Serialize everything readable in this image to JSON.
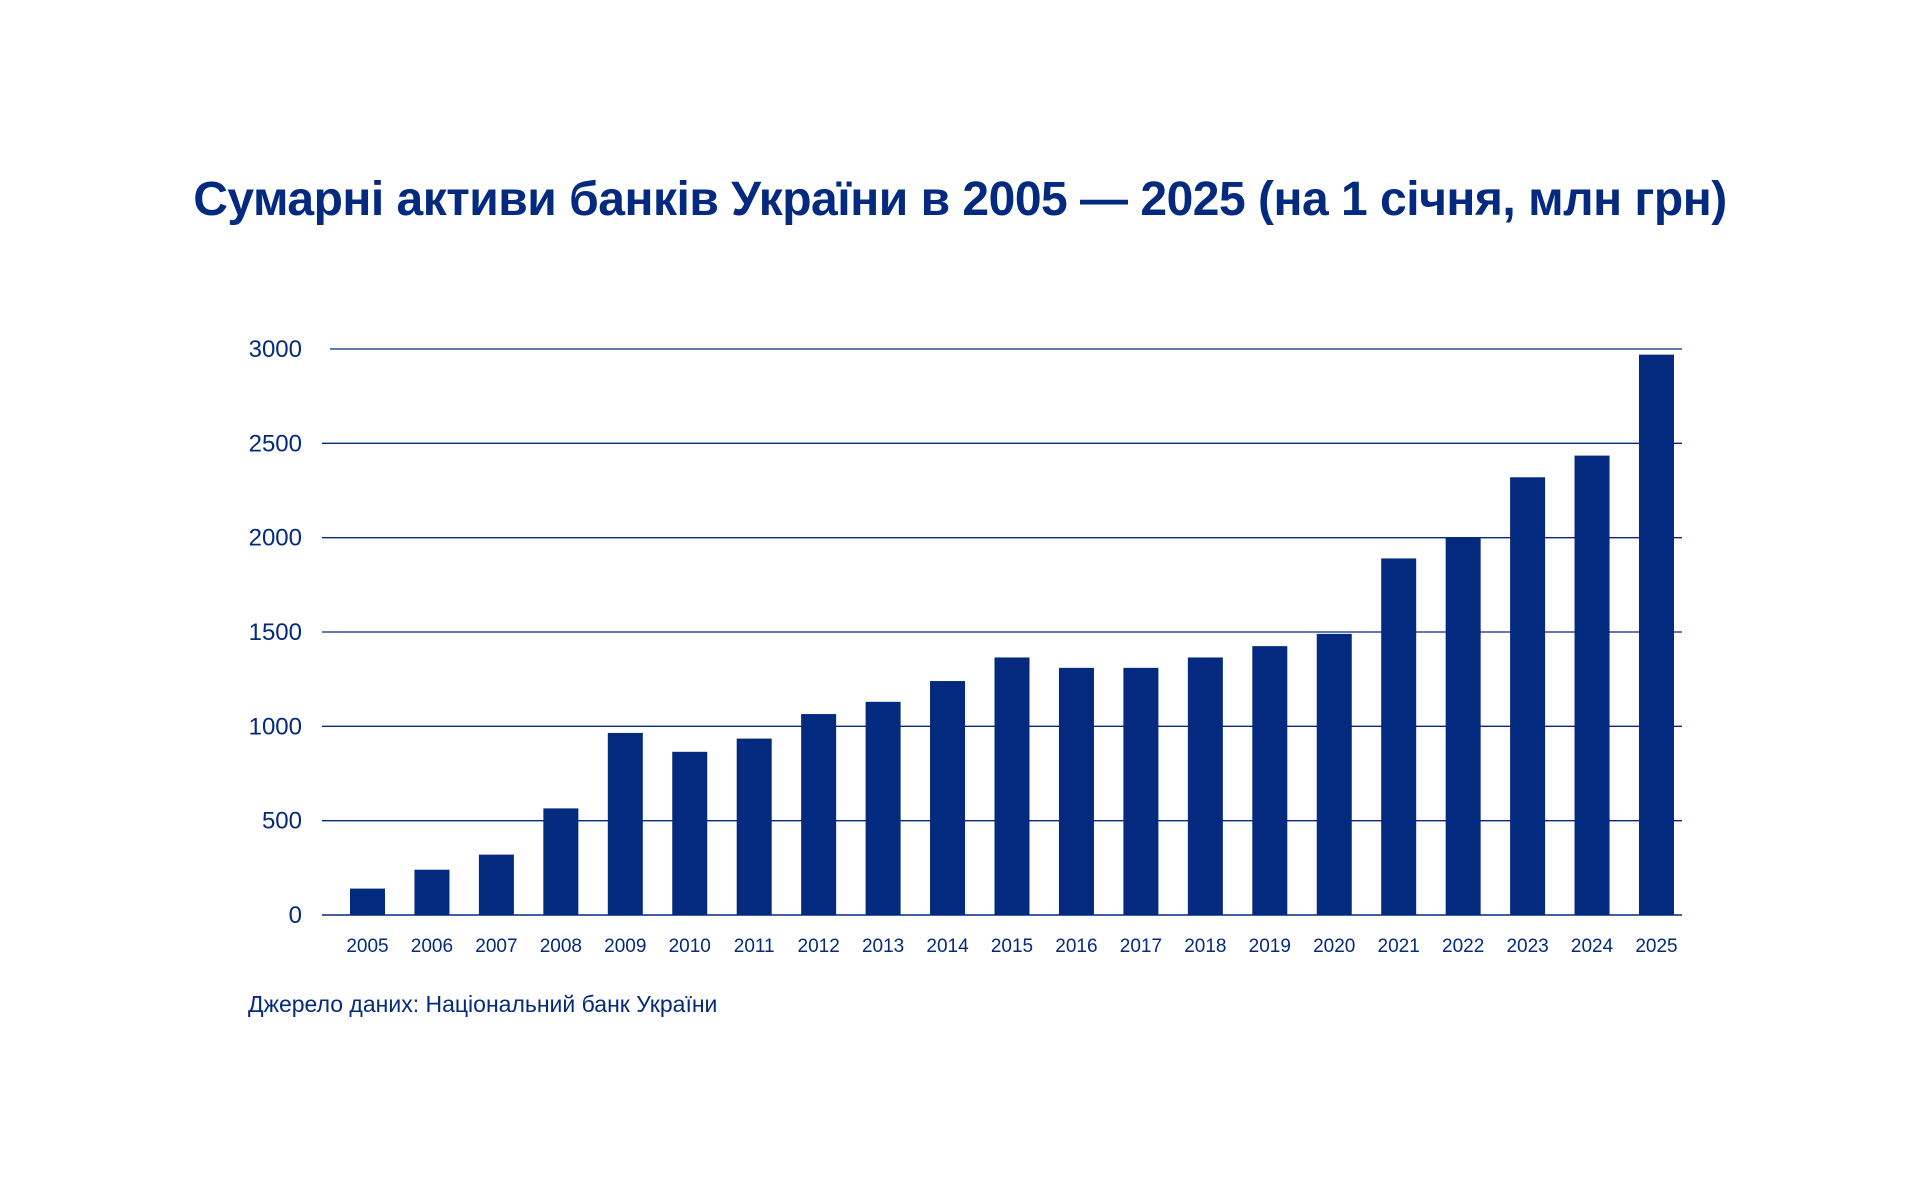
{
  "chart_data": {
    "type": "bar",
    "title": "Сумарні активи банків України в 2005 — 2025 (на 1 січня, млн грн)",
    "source": "Джерело даних: Національний банк України",
    "xlabel": "",
    "ylabel": "",
    "categories": [
      "2005",
      "2006",
      "2007",
      "2008",
      "2009",
      "2010",
      "2011",
      "2012",
      "2013",
      "2014",
      "2015",
      "2016",
      "2017",
      "2018",
      "2019",
      "2020",
      "2021",
      "2022",
      "2023",
      "2024",
      "2025"
    ],
    "values": [
      140,
      240,
      320,
      565,
      965,
      865,
      935,
      1065,
      1130,
      1240,
      1365,
      1310,
      1310,
      1365,
      1425,
      1490,
      1890,
      2000,
      2320,
      2435,
      2970
    ],
    "ylim": [
      0,
      3000
    ],
    "yticks": [
      0,
      500,
      1000,
      1500,
      2000,
      2500,
      3000
    ],
    "grid": true,
    "legend": "none",
    "colors": {
      "bar": "#032a7f",
      "grid": "#032a7f",
      "text": "#032a7f"
    }
  }
}
